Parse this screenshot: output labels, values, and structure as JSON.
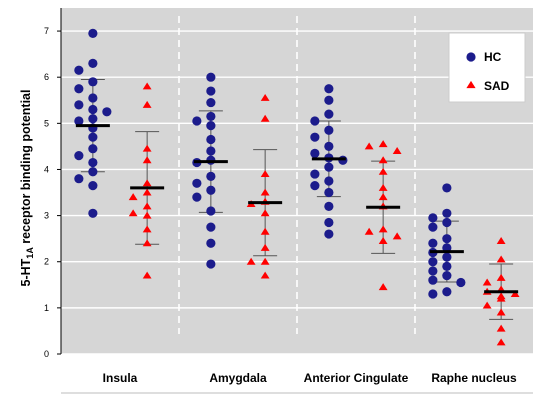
{
  "chart_data": {
    "type": "scatter",
    "ylabel_main": "5-HT",
    "ylabel_sub": "1A",
    "ylabel_rest": " receptor binding potential",
    "ylim": [
      0,
      7.5
    ],
    "yticks": [
      "0",
      "1",
      "2",
      "3",
      "4",
      "5",
      "6",
      "7"
    ],
    "categories": [
      "Insula",
      "Amygdala",
      "Anterior Cingulate",
      "Raphe nucleus"
    ],
    "grid": "horizontal",
    "legend_placement": "top-right",
    "background_color": "#d6d6d6",
    "colors": {
      "HC": "#1c1c8c",
      "SAD": "#ff0000",
      "mean_bar": "#000000",
      "error_bar": "#555555"
    },
    "series": [
      {
        "name": "HC",
        "marker": "circle",
        "groups": [
          {
            "category": "Insula",
            "mean": 4.95,
            "sd": 1.0,
            "points": [
              6.95,
              6.3,
              6.15,
              5.9,
              5.75,
              5.55,
              5.4,
              5.3,
              5.25,
              5.1,
              5.05,
              4.9,
              4.7,
              4.45,
              4.3,
              4.15,
              3.95,
              3.8,
              3.65,
              3.05
            ]
          },
          {
            "category": "Amygdala",
            "mean": 4.17,
            "sd": 1.1,
            "points": [
              6.0,
              5.7,
              5.45,
              5.15,
              5.05,
              4.95,
              4.65,
              4.4,
              4.2,
              4.15,
              3.85,
              3.7,
              3.55,
              3.4,
              3.1,
              2.75,
              2.4,
              1.95
            ]
          },
          {
            "category": "Anterior Cingulate",
            "mean": 4.23,
            "sd": 0.82,
            "points": [
              5.75,
              5.5,
              5.2,
              5.05,
              4.85,
              4.7,
              4.5,
              4.35,
              4.25,
              4.2,
              4.05,
              3.9,
              3.75,
              3.65,
              3.5,
              3.2,
              2.85,
              2.6
            ]
          },
          {
            "category": "Raphe nucleus",
            "mean": 2.22,
            "sd": 0.66,
            "points": [
              3.6,
              3.05,
              2.95,
              2.85,
              2.75,
              2.5,
              2.4,
              2.3,
              2.2,
              2.1,
              2.0,
              1.9,
              1.8,
              1.7,
              1.6,
              1.55,
              1.35,
              1.3
            ]
          }
        ]
      },
      {
        "name": "SAD",
        "marker": "triangle",
        "groups": [
          {
            "category": "Insula",
            "mean": 3.6,
            "sd": 1.22,
            "points": [
              5.8,
              5.4,
              4.45,
              4.2,
              3.7,
              3.5,
              3.4,
              3.2,
              3.05,
              3.0,
              2.7,
              2.4,
              1.7
            ]
          },
          {
            "category": "Amygdala",
            "mean": 3.28,
            "sd": 1.15,
            "points": [
              5.55,
              5.1,
              3.9,
              3.5,
              3.3,
              3.25,
              3.05,
              2.65,
              2.3,
              2.0,
              2.0,
              1.7
            ]
          },
          {
            "category": "Anterior Cingulate",
            "mean": 3.18,
            "sd": 1.0,
            "points": [
              4.55,
              4.5,
              4.4,
              4.2,
              3.95,
              3.6,
              3.4,
              3.2,
              2.7,
              2.65,
              2.55,
              2.45,
              1.45
            ]
          },
          {
            "category": "Raphe nucleus",
            "mean": 1.35,
            "sd": 0.6,
            "points": [
              2.45,
              2.05,
              1.65,
              1.55,
              1.4,
              1.35,
              1.3,
              1.25,
              1.2,
              1.05,
              0.9,
              0.55,
              0.25
            ]
          }
        ]
      }
    ]
  }
}
